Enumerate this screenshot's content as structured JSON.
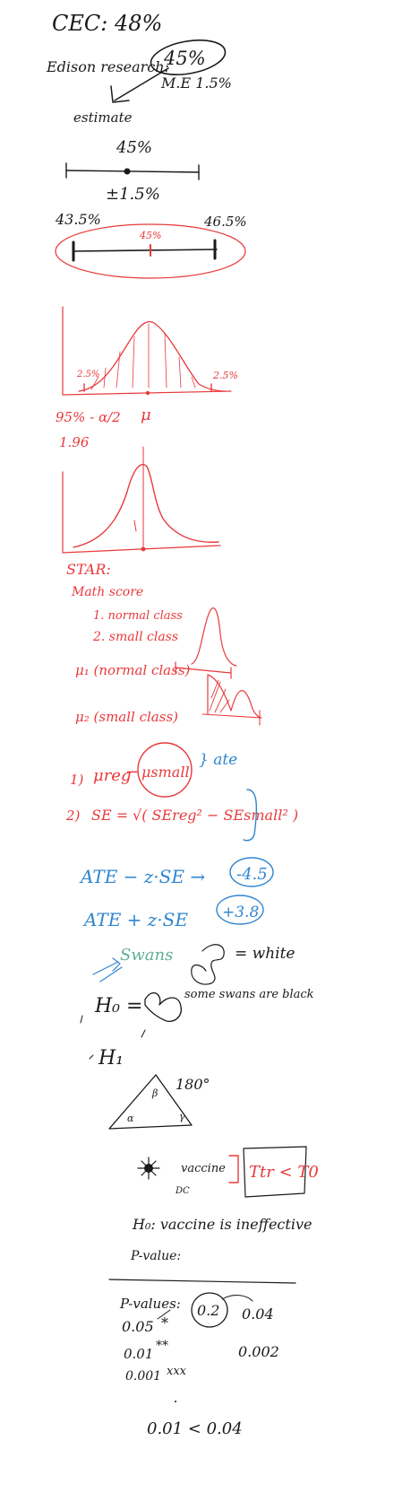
{
  "cec": {
    "text": "CEC: 48%"
  },
  "edison": {
    "label": "Edison research:",
    "circled": "45%",
    "moe": "M.E 1.5%",
    "estimate": "estimate"
  },
  "number_line_1": {
    "center_label": "45%",
    "below_label": "±1.5%"
  },
  "interval": {
    "low": "43.5%",
    "mid": "45%",
    "high": "46.5%"
  },
  "normal_curve_1": {
    "left_tail": "2.5%",
    "right_tail": "2.5%",
    "mu": "μ",
    "note_line1": "95% - α/2",
    "note_line2": "1.96"
  },
  "star": {
    "title": "STAR:",
    "subtitle": "Math score",
    "item1": "1. normal class",
    "item2": "2. small class",
    "mu1": "μ₁ (normal class)",
    "mu2": "μ₂ (small class)"
  },
  "formulas": {
    "step1_num": "1)",
    "mu_reg": "μreg",
    "minus": "−",
    "mu_small": "μsmall",
    "ate": "} ate",
    "step2_num": "2)",
    "se_eq": "SE =",
    "se_expr": "√( SEreg² − SEsmall² )"
  },
  "ate_lines": {
    "line1": "ATE − z·SE →",
    "val1": "-4.5",
    "line2": "ATE + z·SE",
    "val2": "+3.8"
  },
  "swans": {
    "label": "Swans",
    "equals_white": "= white",
    "h0": "H₀ =",
    "h0_text": "some swans are black",
    "h1": "H₁"
  },
  "triangle": {
    "angle_sum": "180°",
    "beta": "β",
    "alpha": "α",
    "gamma": "γ"
  },
  "vaccine": {
    "vaccine_label": "vaccine",
    "dc_label": "DC",
    "ineq": "Ttr < T0",
    "h0": "H₀: vaccine is ineffective",
    "pvalue": "P-value:"
  },
  "pvalues": {
    "title": "P-values:",
    "r1_val": "0.05",
    "r1_star": "*",
    "circled": "0.2",
    "r1_right": "0.04",
    "r2_val": "0.01",
    "r2_star": "**",
    "r2_right": "0.002",
    "r3_val": "0.001",
    "r3_star": "xxx",
    "final": "0.01 < 0.04"
  }
}
